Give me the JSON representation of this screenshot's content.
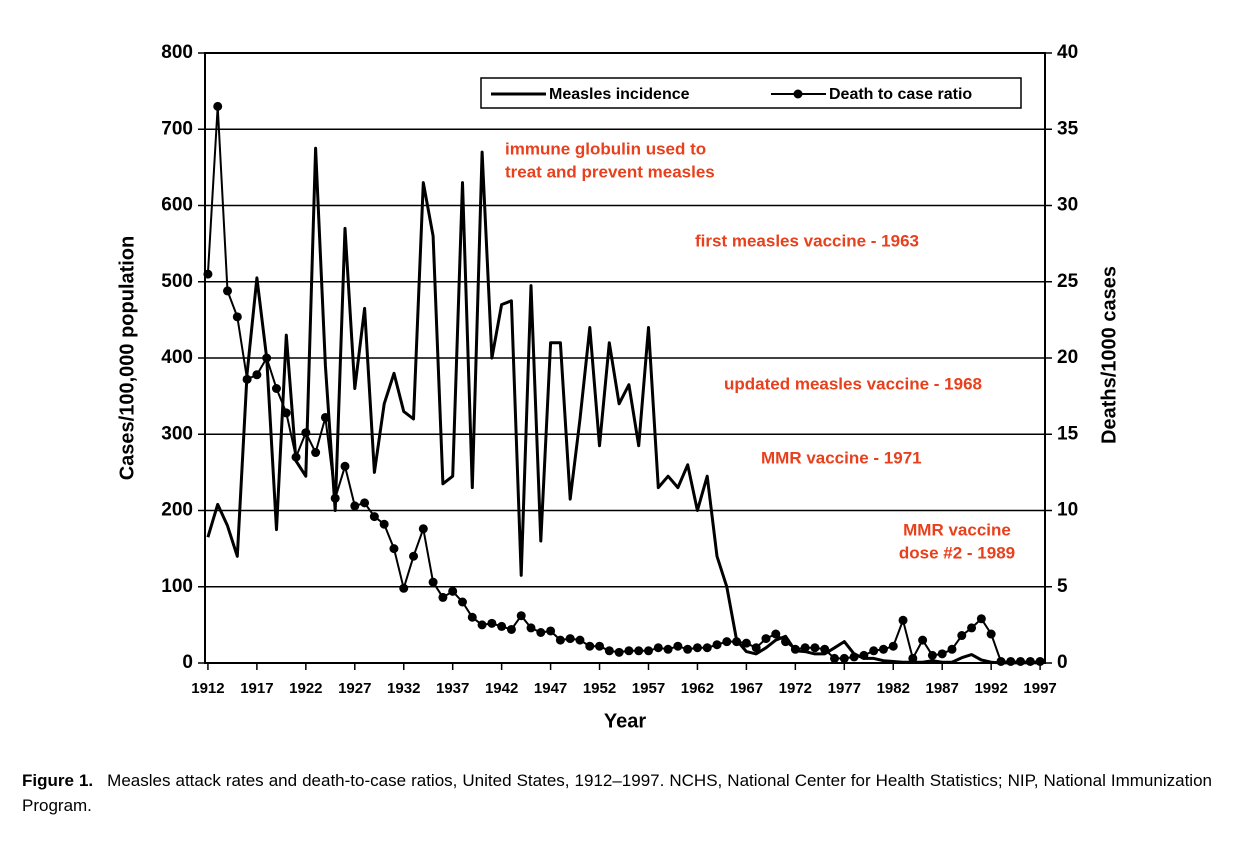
{
  "chart_data": {
    "type": "line",
    "xlabel": "Year",
    "ylabel": "Cases/100,000 population",
    "y2label": "Deaths/1000 cases",
    "x": [
      1912,
      1913,
      1914,
      1915,
      1916,
      1917,
      1918,
      1919,
      1920,
      1921,
      1922,
      1923,
      1924,
      1925,
      1926,
      1927,
      1928,
      1929,
      1930,
      1931,
      1932,
      1933,
      1934,
      1935,
      1936,
      1937,
      1938,
      1939,
      1940,
      1941,
      1942,
      1943,
      1944,
      1945,
      1946,
      1947,
      1948,
      1949,
      1950,
      1951,
      1952,
      1953,
      1954,
      1955,
      1956,
      1957,
      1958,
      1959,
      1960,
      1961,
      1962,
      1963,
      1964,
      1965,
      1966,
      1967,
      1968,
      1969,
      1970,
      1971,
      1972,
      1973,
      1974,
      1975,
      1976,
      1977,
      1978,
      1979,
      1980,
      1981,
      1982,
      1983,
      1984,
      1985,
      1986,
      1987,
      1988,
      1989,
      1990,
      1991,
      1992,
      1993,
      1994,
      1995,
      1996,
      1997
    ],
    "series": [
      {
        "name": "Measles incidence",
        "color": "#000000",
        "marker": false,
        "values": [
          165,
          208,
          180,
          140,
          380,
          505,
          400,
          175,
          430,
          265,
          245,
          675,
          390,
          200,
          570,
          360,
          465,
          250,
          340,
          380,
          330,
          320,
          630,
          560,
          235,
          245,
          630,
          230,
          670,
          400,
          470,
          475,
          115,
          495,
          160,
          420,
          420,
          215,
          320,
          440,
          285,
          420,
          340,
          365,
          285,
          440,
          230,
          245,
          230,
          260,
          200,
          245,
          140,
          100,
          30,
          15,
          12,
          20,
          30,
          35,
          16,
          15,
          12,
          12,
          20,
          28,
          12,
          6,
          6,
          3,
          2,
          1,
          1,
          1,
          3,
          1,
          1,
          7,
          11,
          4,
          1,
          0.1,
          0.4,
          0.1,
          0.2,
          0.1
        ]
      },
      {
        "name": "Death to case ratio",
        "color": "#000000",
        "marker": true,
        "axis": "y2",
        "values": [
          25.5,
          36.5,
          24.4,
          22.7,
          18.6,
          18.9,
          20,
          18,
          16.4,
          13.5,
          15.1,
          13.8,
          16.1,
          10.8,
          12.9,
          10.3,
          10.5,
          9.6,
          9.1,
          7.5,
          4.9,
          7.0,
          8.8,
          5.3,
          4.3,
          4.7,
          4.0,
          3.0,
          2.5,
          2.6,
          2.4,
          2.2,
          3.1,
          2.3,
          2.0,
          2.1,
          1.5,
          1.6,
          1.5,
          1.1,
          1.1,
          0.8,
          0.7,
          0.8,
          0.8,
          0.8,
          1.0,
          0.9,
          1.1,
          0.9,
          1.0,
          1.0,
          1.2,
          1.4,
          1.4,
          1.3,
          1.0,
          1.6,
          1.9,
          1.4,
          0.9,
          1.0,
          1.0,
          0.9,
          0.3,
          0.3,
          0.4,
          0.5,
          0.8,
          0.9,
          1.1,
          2.8,
          0.3,
          1.5,
          0.5,
          0.6,
          0.9,
          1.8,
          2.3,
          2.9,
          1.9,
          0.1,
          0.1,
          0.1,
          0.1,
          0.1
        ]
      }
    ],
    "xlim": [
      1911.7,
      1997.5
    ],
    "xticks": [
      1912,
      1917,
      1922,
      1927,
      1932,
      1937,
      1942,
      1947,
      1952,
      1957,
      1962,
      1967,
      1972,
      1977,
      1982,
      1987,
      1992,
      1997
    ],
    "ylim": [
      0,
      800
    ],
    "yticks": [
      0,
      100,
      200,
      300,
      400,
      500,
      600,
      700,
      800
    ],
    "y2lim": [
      0,
      40
    ],
    "y2ticks": [
      0,
      5,
      10,
      15,
      20,
      25,
      30,
      35,
      40
    ],
    "grid": true,
    "legend": "top-right",
    "annotation_color": "#e8401c",
    "annotations": [
      [
        "immune globulin used to",
        "treat and prevent measles"
      ],
      [
        "first measles vaccine - 1963"
      ],
      [
        "updated measles vaccine - 1968"
      ],
      [
        "MMR vaccine - 1971"
      ],
      [
        "MMR vaccine",
        "dose #2 - 1989"
      ]
    ],
    "figure_label": "Figure 1.",
    "caption": "Measles attack rates and death-to-case ratios, United States, 1912–1997. NCHS, National Center for Health Statistics; NIP, National Immunization Program."
  }
}
